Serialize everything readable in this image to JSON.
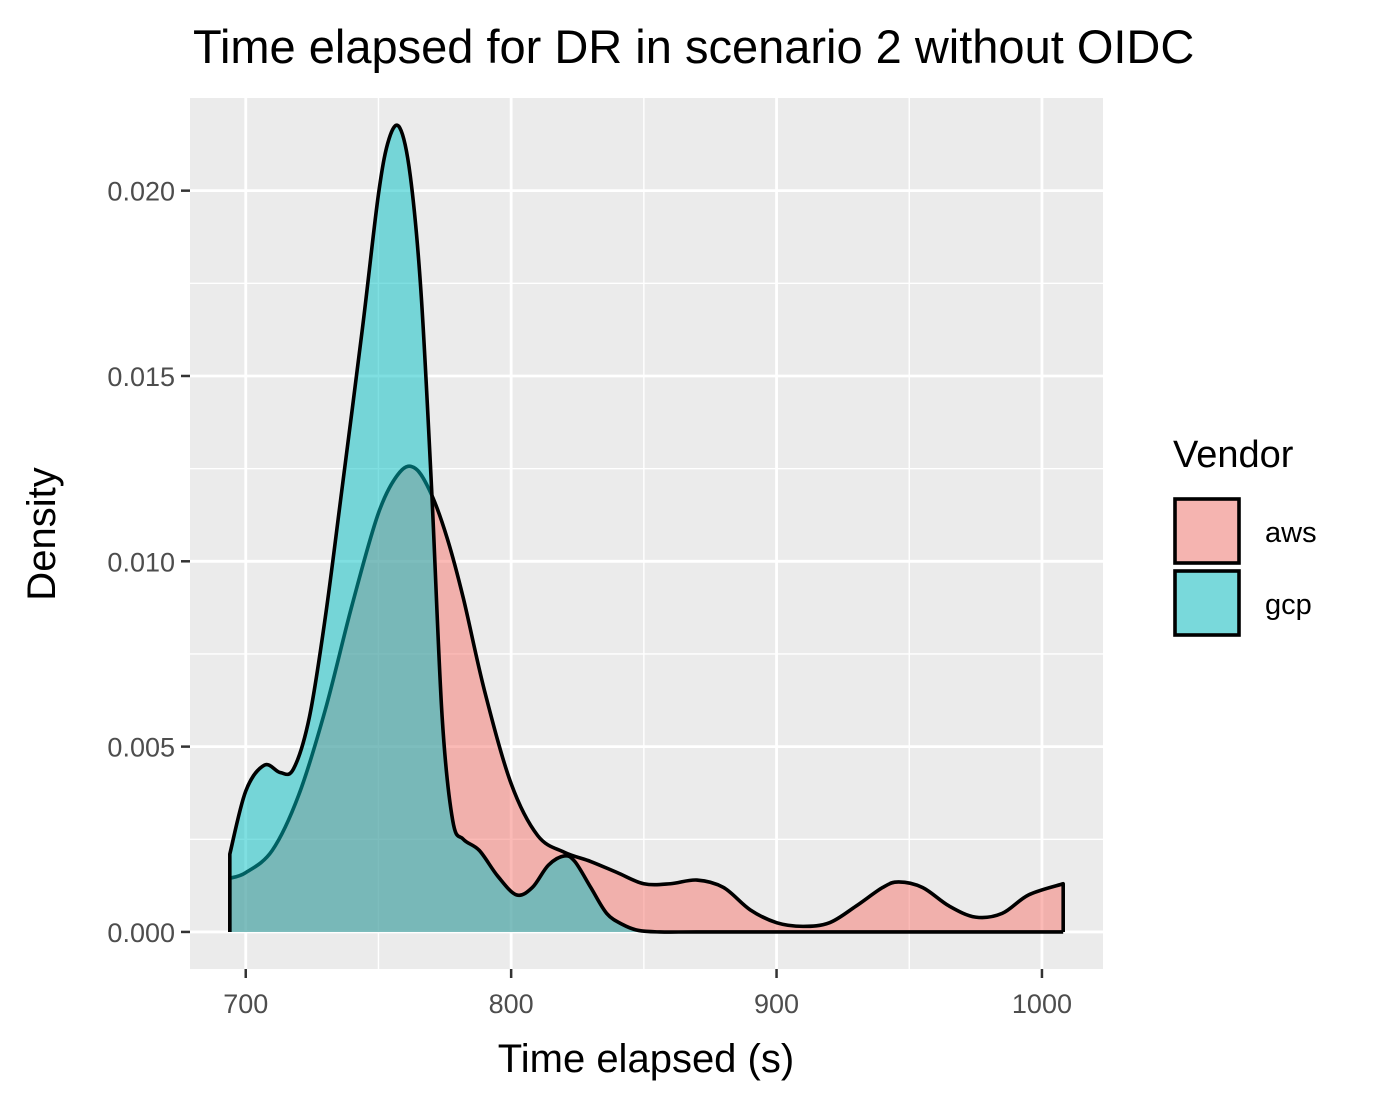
{
  "chart_data": {
    "type": "area",
    "title": "Time elapsed for DR in scenario 2 without OIDC",
    "xlabel": "Time elapsed (s)",
    "ylabel": "Density",
    "xlim": [
      679,
      1023
    ],
    "ylim": [
      -0.001,
      0.0225
    ],
    "x_ticks": [
      700,
      800,
      900,
      1000
    ],
    "x_tick_labels": [
      "700",
      "800",
      "900",
      "1000"
    ],
    "y_ticks": [
      0.0,
      0.005,
      0.01,
      0.015,
      0.02
    ],
    "y_tick_labels": [
      "0.000",
      "0.005",
      "0.010",
      "0.015",
      "0.020"
    ],
    "grid": true,
    "legend": {
      "title": "Vendor",
      "position": "right"
    },
    "series": [
      {
        "name": "aws",
        "color": "#F8766D",
        "x": [
          694,
          700,
          710,
          720,
          730,
          740,
          750,
          758,
          764,
          770,
          776,
          782,
          790,
          800,
          810,
          820,
          830,
          840,
          850,
          860,
          870,
          880,
          890,
          900,
          910,
          920,
          930,
          940,
          946,
          955,
          965,
          975,
          985,
          995,
          1008
        ],
        "y": [
          0.00145,
          0.0016,
          0.0022,
          0.0037,
          0.006,
          0.0088,
          0.0113,
          0.0124,
          0.0125,
          0.0118,
          0.0106,
          0.009,
          0.0065,
          0.004,
          0.0026,
          0.00215,
          0.0019,
          0.0016,
          0.0013,
          0.0013,
          0.0014,
          0.0012,
          0.0006,
          0.00025,
          0.00015,
          0.00025,
          0.0007,
          0.0012,
          0.00135,
          0.0012,
          0.0007,
          0.0004,
          0.0005,
          0.001,
          0.0013
        ]
      },
      {
        "name": "gcp",
        "color": "#00BFC4",
        "x": [
          694,
          700,
          707,
          713,
          718,
          724,
          730,
          736,
          744,
          750,
          754,
          758,
          762,
          766,
          770,
          774,
          778,
          782,
          788,
          795,
          802,
          808,
          814,
          820,
          824,
          830,
          836,
          842,
          848,
          856,
          870,
          900,
          950,
          1008
        ],
        "y": [
          0.0021,
          0.0038,
          0.0045,
          0.0043,
          0.0044,
          0.0058,
          0.0085,
          0.0118,
          0.0163,
          0.0199,
          0.0214,
          0.0217,
          0.0204,
          0.0173,
          0.012,
          0.0058,
          0.003,
          0.0025,
          0.0022,
          0.0015,
          0.001,
          0.0012,
          0.0018,
          0.00205,
          0.0019,
          0.0012,
          0.0005,
          0.0002,
          4e-05,
          0.0,
          0.0,
          0.0,
          0.0,
          0.0
        ]
      }
    ]
  }
}
